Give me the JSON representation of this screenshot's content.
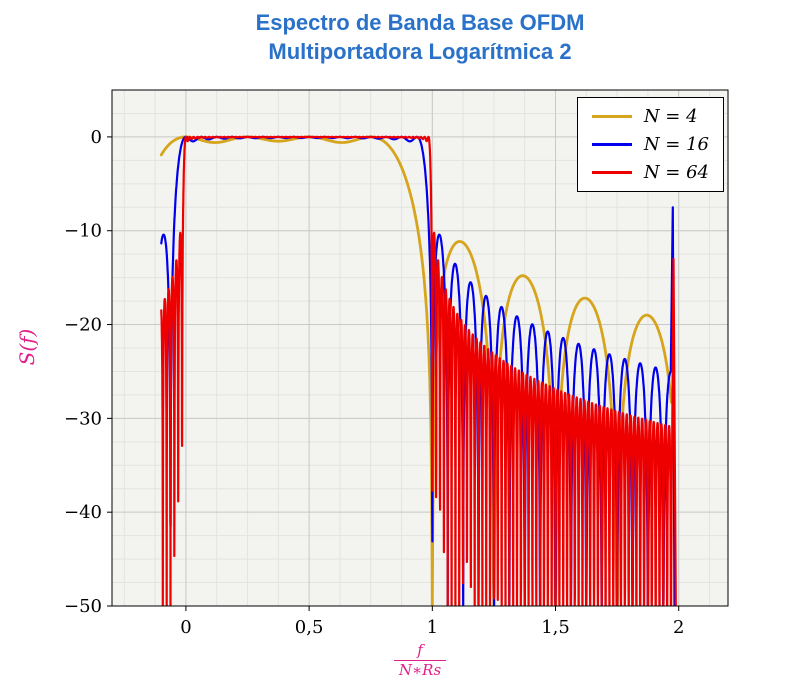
{
  "chart_data": {
    "type": "line",
    "title_line1": "Espectro de Banda Base OFDM",
    "title_line2": "Multiportadora Logarítmica 2",
    "ylabel": "S(f)",
    "xlabel_numerator": "f",
    "xlabel_denominator": "N∗Rs",
    "xlim": [
      -0.3,
      2.2
    ],
    "ylim": [
      -50,
      5
    ],
    "x_minor_step": 0.125,
    "y_minor_step": 2.5,
    "floor_db": -50,
    "grid": true,
    "legend_position": "top-right",
    "xticks": [
      {
        "v": 0,
        "label": "0"
      },
      {
        "v": 0.5,
        "label": "0,5"
      },
      {
        "v": 1,
        "label": "1"
      },
      {
        "v": 1.5,
        "label": "1,5"
      },
      {
        "v": 2,
        "label": "2"
      }
    ],
    "yticks": [
      {
        "v": 0,
        "label": "0"
      },
      {
        "v": -10,
        "label": "−10"
      },
      {
        "v": -20,
        "label": "−20"
      },
      {
        "v": -30,
        "label": "−30"
      },
      {
        "v": -40,
        "label": "−40"
      },
      {
        "v": -50,
        "label": "−50"
      }
    ],
    "colors": {
      "title": "#2a72c9",
      "labels": "#e0218a",
      "plot_bg": "#f3f3f0",
      "grid_major": "#c9c9c6",
      "grid_minor": "#e3e3e0",
      "axis": "#000000"
    },
    "model_note": "S(u) = 10·log10( Σ_{k=0..N−1} sinc²(N·u − k) ), u = f/(N·Rs)",
    "series": [
      {
        "name": "N4",
        "label": "N = 4",
        "N": 4,
        "color": "#d6a51d",
        "width": 2.8,
        "x_range": [
          -0.1,
          1.97
        ],
        "samples": 1400,
        "tail_points": []
      },
      {
        "name": "N16",
        "label": "N = 16",
        "N": 16,
        "color": "#0000ee",
        "width": 2.2,
        "x_range": [
          -0.1,
          1.968
        ],
        "samples": 2400,
        "tail_points": [
          [
            1.976,
            -7.5
          ],
          [
            1.983,
            -50
          ]
        ]
      },
      {
        "name": "N64",
        "label": "N = 64",
        "N": 64,
        "color": "#ee0000",
        "width": 2.2,
        "x_range": [
          -0.1,
          1.973
        ],
        "samples": 3600,
        "tail_points": [
          [
            1.979,
            -13
          ],
          [
            1.988,
            -50
          ]
        ]
      }
    ]
  }
}
